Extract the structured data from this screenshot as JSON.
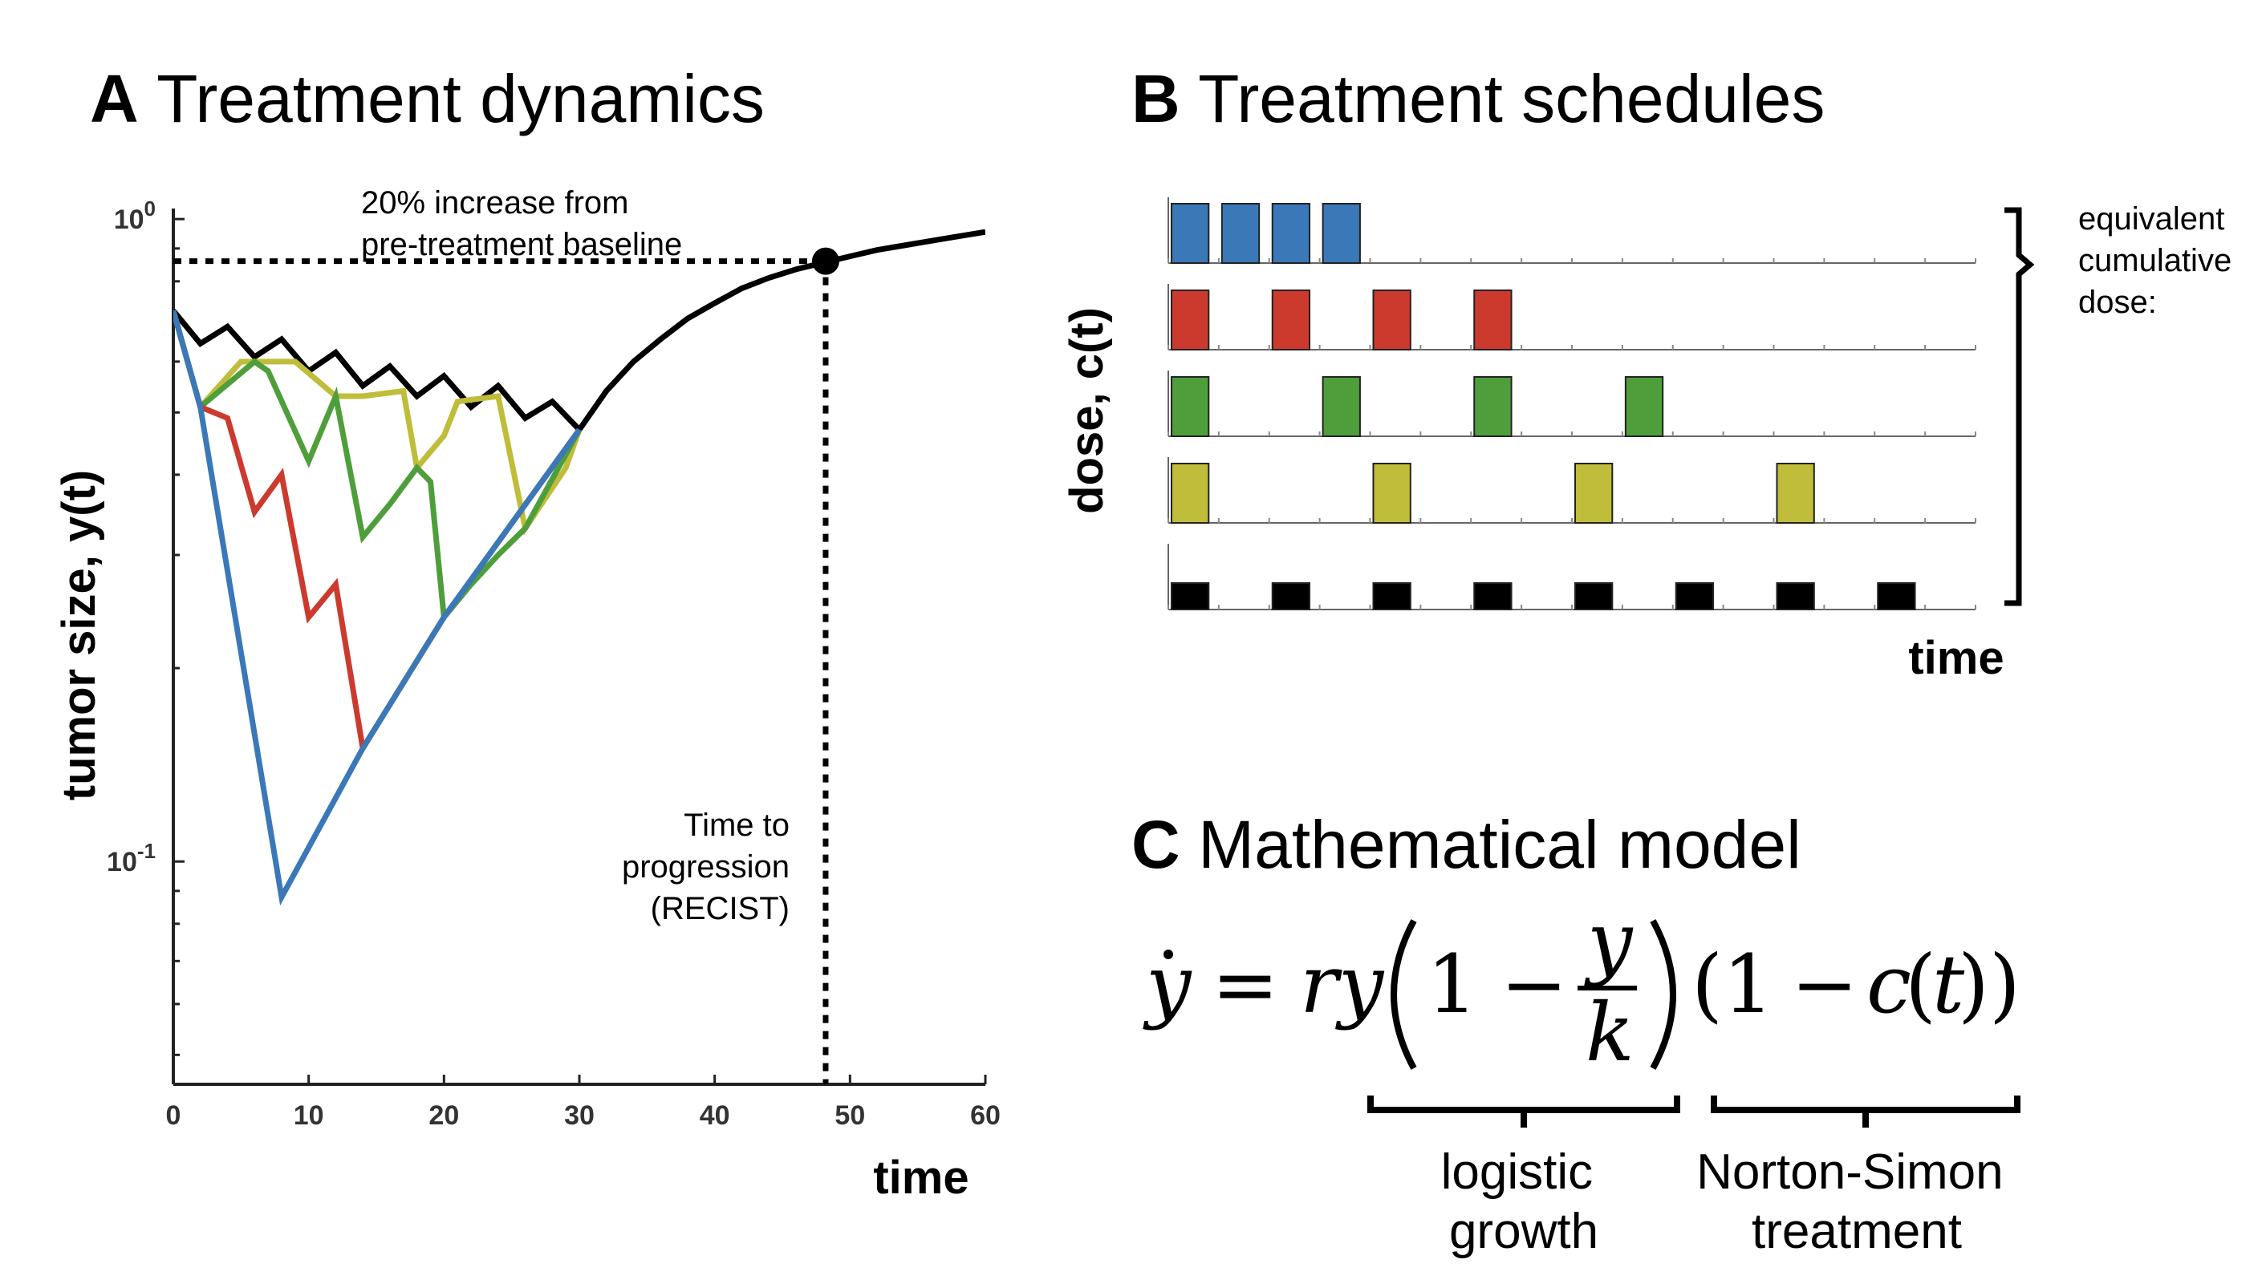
{
  "panels": {
    "A": {
      "letter": "A",
      "title": "Treatment dynamics"
    },
    "B": {
      "letter": "B",
      "title": "Treatment schedules"
    },
    "C": {
      "letter": "C",
      "title": "Mathematical model"
    }
  },
  "colors": {
    "blue": "#3a78b8",
    "red": "#cc3a2e",
    "green": "#4f9e3c",
    "yellow": "#bfbd3a",
    "black": "#000000"
  },
  "chart_data": [
    {
      "type": "line",
      "panel": "A",
      "xlabel": "time",
      "ylabel": "tumor size, y(t)",
      "xlim": [
        0,
        60
      ],
      "ylim": [
        0.045,
        1.1
      ],
      "yscale": "log",
      "xticks": [
        0,
        10,
        20,
        30,
        40,
        50,
        60
      ],
      "xtick_labels": [
        "0",
        "10",
        "20",
        "30",
        "40",
        "50",
        "60"
      ],
      "yticks": [
        {
          "value": 1,
          "base": "10",
          "exp": "0"
        },
        {
          "value": 0.1,
          "base": "10",
          "exp": "-1"
        }
      ],
      "threshold": {
        "y": 0.86,
        "label_lines": [
          "20% increase from",
          "pre-treatment baseline"
        ]
      },
      "progression": {
        "x": 48.2,
        "y": 0.86,
        "label_lines": [
          "Time to",
          "progression",
          "(RECIST)"
        ]
      },
      "series": [
        {
          "color": "black",
          "x": [
            0,
            2,
            4,
            6,
            8,
            10,
            12,
            14,
            16,
            18,
            20,
            22,
            24,
            26,
            28,
            30,
            32,
            34,
            36,
            38,
            40,
            42,
            44,
            46,
            48,
            50,
            52,
            54,
            56,
            58,
            60
          ],
          "y": [
            0.72,
            0.64,
            0.68,
            0.61,
            0.65,
            0.58,
            0.62,
            0.55,
            0.59,
            0.53,
            0.57,
            0.51,
            0.55,
            0.49,
            0.52,
            0.47,
            0.54,
            0.6,
            0.65,
            0.7,
            0.74,
            0.78,
            0.81,
            0.835,
            0.855,
            0.875,
            0.895,
            0.91,
            0.925,
            0.94,
            0.955
          ]
        },
        {
          "color": "yellow",
          "x": [
            0,
            2,
            5,
            6,
            8,
            9,
            12,
            14,
            17,
            18,
            20,
            21,
            24,
            26,
            29,
            30
          ],
          "y": [
            0.72,
            0.51,
            0.6,
            0.6,
            0.6,
            0.6,
            0.53,
            0.53,
            0.54,
            0.41,
            0.46,
            0.52,
            0.53,
            0.33,
            0.41,
            0.47
          ]
        },
        {
          "color": "green",
          "x": [
            0,
            2,
            6,
            7,
            10,
            12,
            14,
            16,
            18,
            19,
            20,
            22,
            24,
            26,
            30
          ],
          "y": [
            0.72,
            0.51,
            0.6,
            0.58,
            0.42,
            0.53,
            0.32,
            0.36,
            0.41,
            0.39,
            0.24,
            0.27,
            0.3,
            0.33,
            0.47
          ]
        },
        {
          "color": "red",
          "x": [
            0,
            2,
            4,
            6,
            8,
            10,
            12,
            14,
            20,
            30
          ],
          "y": [
            0.72,
            0.51,
            0.49,
            0.35,
            0.4,
            0.24,
            0.27,
            0.15,
            0.24,
            0.47
          ]
        },
        {
          "color": "blue",
          "x": [
            0,
            2,
            8,
            14,
            20,
            30
          ],
          "y": [
            0.72,
            0.51,
            0.088,
            0.15,
            0.24,
            0.47
          ]
        }
      ]
    },
    {
      "type": "bar",
      "panel": "B",
      "xlabel": "time",
      "ylabel": "dose, c(t)",
      "rows": [
        {
          "color": "blue",
          "pulses": [
            0,
            1.1,
            2.2,
            3.3
          ],
          "width": 0.88,
          "height": 1.0
        },
        {
          "color": "red",
          "pulses": [
            0,
            2.2,
            4.4,
            6.6
          ],
          "width": 0.88,
          "height": 1.0
        },
        {
          "color": "green",
          "pulses": [
            0,
            3.3,
            6.6,
            9.9
          ],
          "width": 0.88,
          "height": 1.0
        },
        {
          "color": "yellow",
          "pulses": [
            0,
            4.4,
            8.8,
            13.2
          ],
          "width": 0.88,
          "height": 1.0
        },
        {
          "color": "black",
          "pulses": [
            0,
            2.2,
            4.4,
            6.6,
            8.8,
            11.0,
            13.2,
            15.4
          ],
          "width": 0.88,
          "height": 0.5
        }
      ],
      "xlim": [
        0,
        17.6
      ],
      "bracket_note_lines": [
        "equivalent",
        "cumulative",
        "dose:"
      ]
    }
  ],
  "model": {
    "labels": {
      "logistic": [
        "logistic",
        "growth"
      ],
      "treatment": [
        "Norton-Simon",
        "treatment"
      ]
    }
  }
}
